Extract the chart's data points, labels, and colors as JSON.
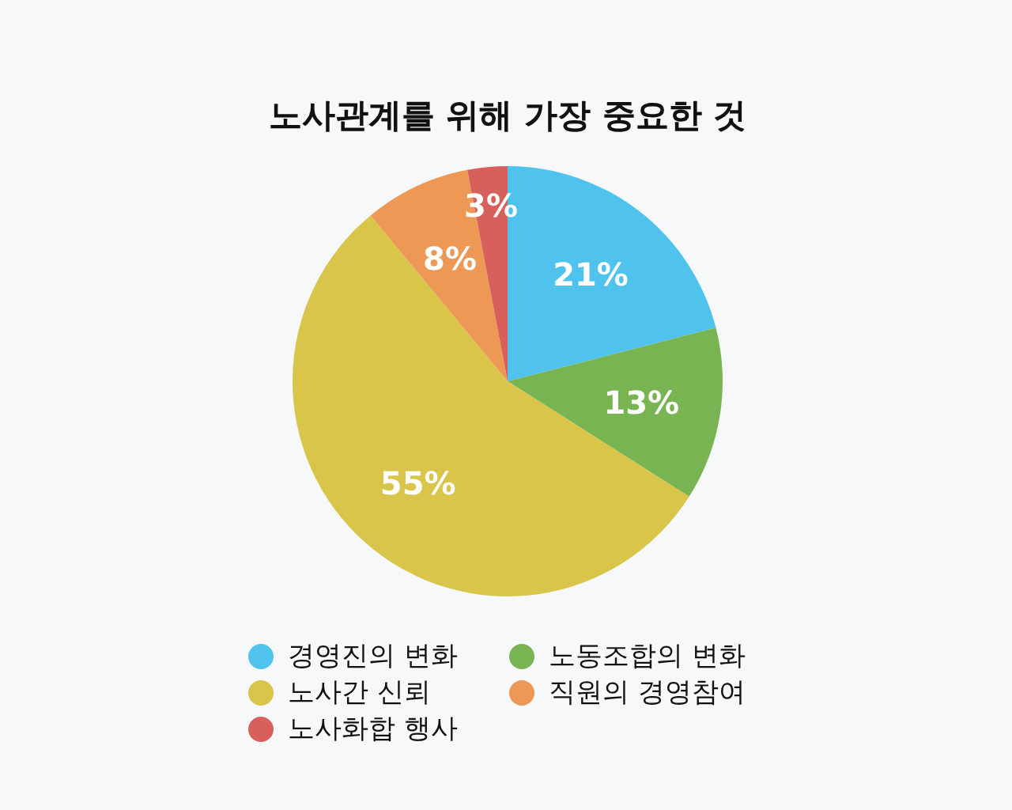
{
  "chart_data": {
    "type": "pie",
    "title": "노사관계를 위해 가장 중요한 것",
    "categories": [
      "경영진의 변화",
      "노동조합의 변화",
      "노사간 신뢰",
      "직원의 경영참여",
      "노사화합 행사"
    ],
    "values": [
      21,
      13,
      55,
      8,
      3
    ],
    "value_labels": [
      "21%",
      "13%",
      "55%",
      "8%",
      "3%"
    ],
    "colors": [
      "#4fc3ee",
      "#78b552",
      "#d8c54a",
      "#ee9856",
      "#d8605c"
    ],
    "legend": "bottom"
  }
}
